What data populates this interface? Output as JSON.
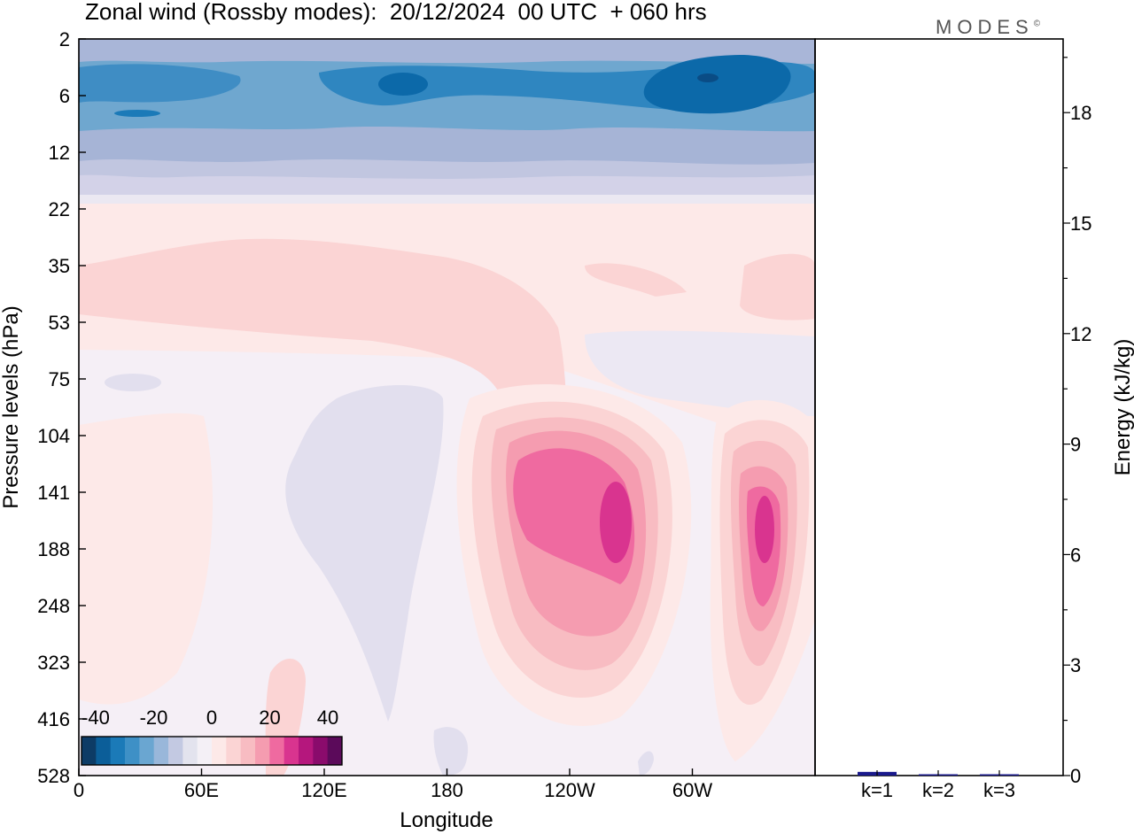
{
  "title": "Zonal wind (Rossby modes):  20/12/2024  00 UTC  + 060 hrs",
  "logo": "MODES",
  "logo_mark": "©",
  "chart_data": [
    {
      "type": "heatmap",
      "title": "Zonal wind (Rossby modes):  20/12/2024  00 UTC  + 060 hrs",
      "xlabel": "Longitude",
      "ylabel": "Pressure levels (hPa)",
      "x_ticks": [
        "0",
        "60E",
        "120E",
        "180",
        "120W",
        "60W"
      ],
      "y_ticks": [
        "2",
        "6",
        "12",
        "22",
        "35",
        "53",
        "75",
        "104",
        "141",
        "188",
        "248",
        "323",
        "416",
        "528"
      ],
      "colorbar": {
        "labels": [
          "-40",
          "-20",
          "0",
          "20",
          "40"
        ],
        "colors": [
          "#0d3b66",
          "#0b5e99",
          "#1b7ab8",
          "#3e90c6",
          "#6aa6d1",
          "#99b7da",
          "#c3c9e2",
          "#e3e3ee",
          "#f4f0f6",
          "#fde9e8",
          "#fbd4d4",
          "#f8bcc2",
          "#f59cb0",
          "#ef6aa0",
          "#d9348f",
          "#b5177d",
          "#8a0b6c",
          "#5b0a5a"
        ]
      },
      "features": [
        {
          "kind": "easterly jet",
          "lon": [
            0,
            360
          ],
          "levels_hPa": [
            2,
            20
          ],
          "max_speed": -40,
          "core_lon": [
            160,
            300
          ]
        },
        {
          "kind": "westerly band",
          "lon": [
            10,
            240
          ],
          "levels_hPa": [
            30,
            60
          ],
          "max_speed": 10
        },
        {
          "kind": "westerly maximum",
          "lon": 262,
          "levels_hPa": [
            104,
            323
          ],
          "max_speed": 35
        },
        {
          "kind": "westerly maximum",
          "lon": 335,
          "levels_hPa": [
            104,
            323
          ],
          "max_speed": 30
        },
        {
          "kind": "weak easterly",
          "lon": 150,
          "levels_hPa": [
            75,
            416
          ],
          "max_speed": -5
        }
      ]
    },
    {
      "type": "bar",
      "ylabel": "Energy (kJ/kg)",
      "categories": [
        "k=1",
        "k=2",
        "k=3"
      ],
      "values": [
        0.1,
        0.03,
        0.02
      ],
      "ylim": [
        0,
        20
      ],
      "y_ticks": [
        "0",
        "3",
        "6",
        "9",
        "12",
        "15",
        "18"
      ],
      "bar_color": "#1a1a8c"
    }
  ]
}
